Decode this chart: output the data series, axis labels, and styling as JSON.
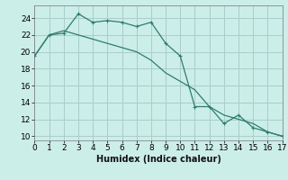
{
  "title": "",
  "xlabel": "Humidex (Indice chaleur)",
  "background_color": "#cceee8",
  "grid_color": "#aacccc",
  "line_color": "#2e7d6e",
  "x_data": [
    0,
    1,
    2,
    3,
    4,
    5,
    6,
    7,
    8,
    9,
    10,
    11,
    12,
    13,
    14,
    15,
    16,
    17
  ],
  "y_jagged": [
    19.5,
    22.0,
    22.2,
    24.5,
    23.5,
    23.7,
    23.5,
    23.0,
    23.5,
    21.0,
    19.5,
    13.5,
    13.5,
    11.5,
    12.5,
    11.0,
    10.5,
    10.0
  ],
  "y_smooth": [
    19.5,
    22.0,
    22.5,
    22.0,
    21.5,
    21.0,
    20.5,
    20.0,
    19.0,
    17.5,
    16.5,
    15.5,
    13.5,
    12.5,
    12.0,
    11.5,
    10.5,
    10.0
  ],
  "xlim": [
    0,
    17
  ],
  "ylim": [
    9.5,
    25.5
  ],
  "yticks": [
    10,
    12,
    14,
    16,
    18,
    20,
    22,
    24
  ],
  "xticks": [
    0,
    1,
    2,
    3,
    4,
    5,
    6,
    7,
    8,
    9,
    10,
    11,
    12,
    13,
    14,
    15,
    16,
    17
  ],
  "fontsize": 6.5,
  "xlabel_fontsize": 7.0
}
